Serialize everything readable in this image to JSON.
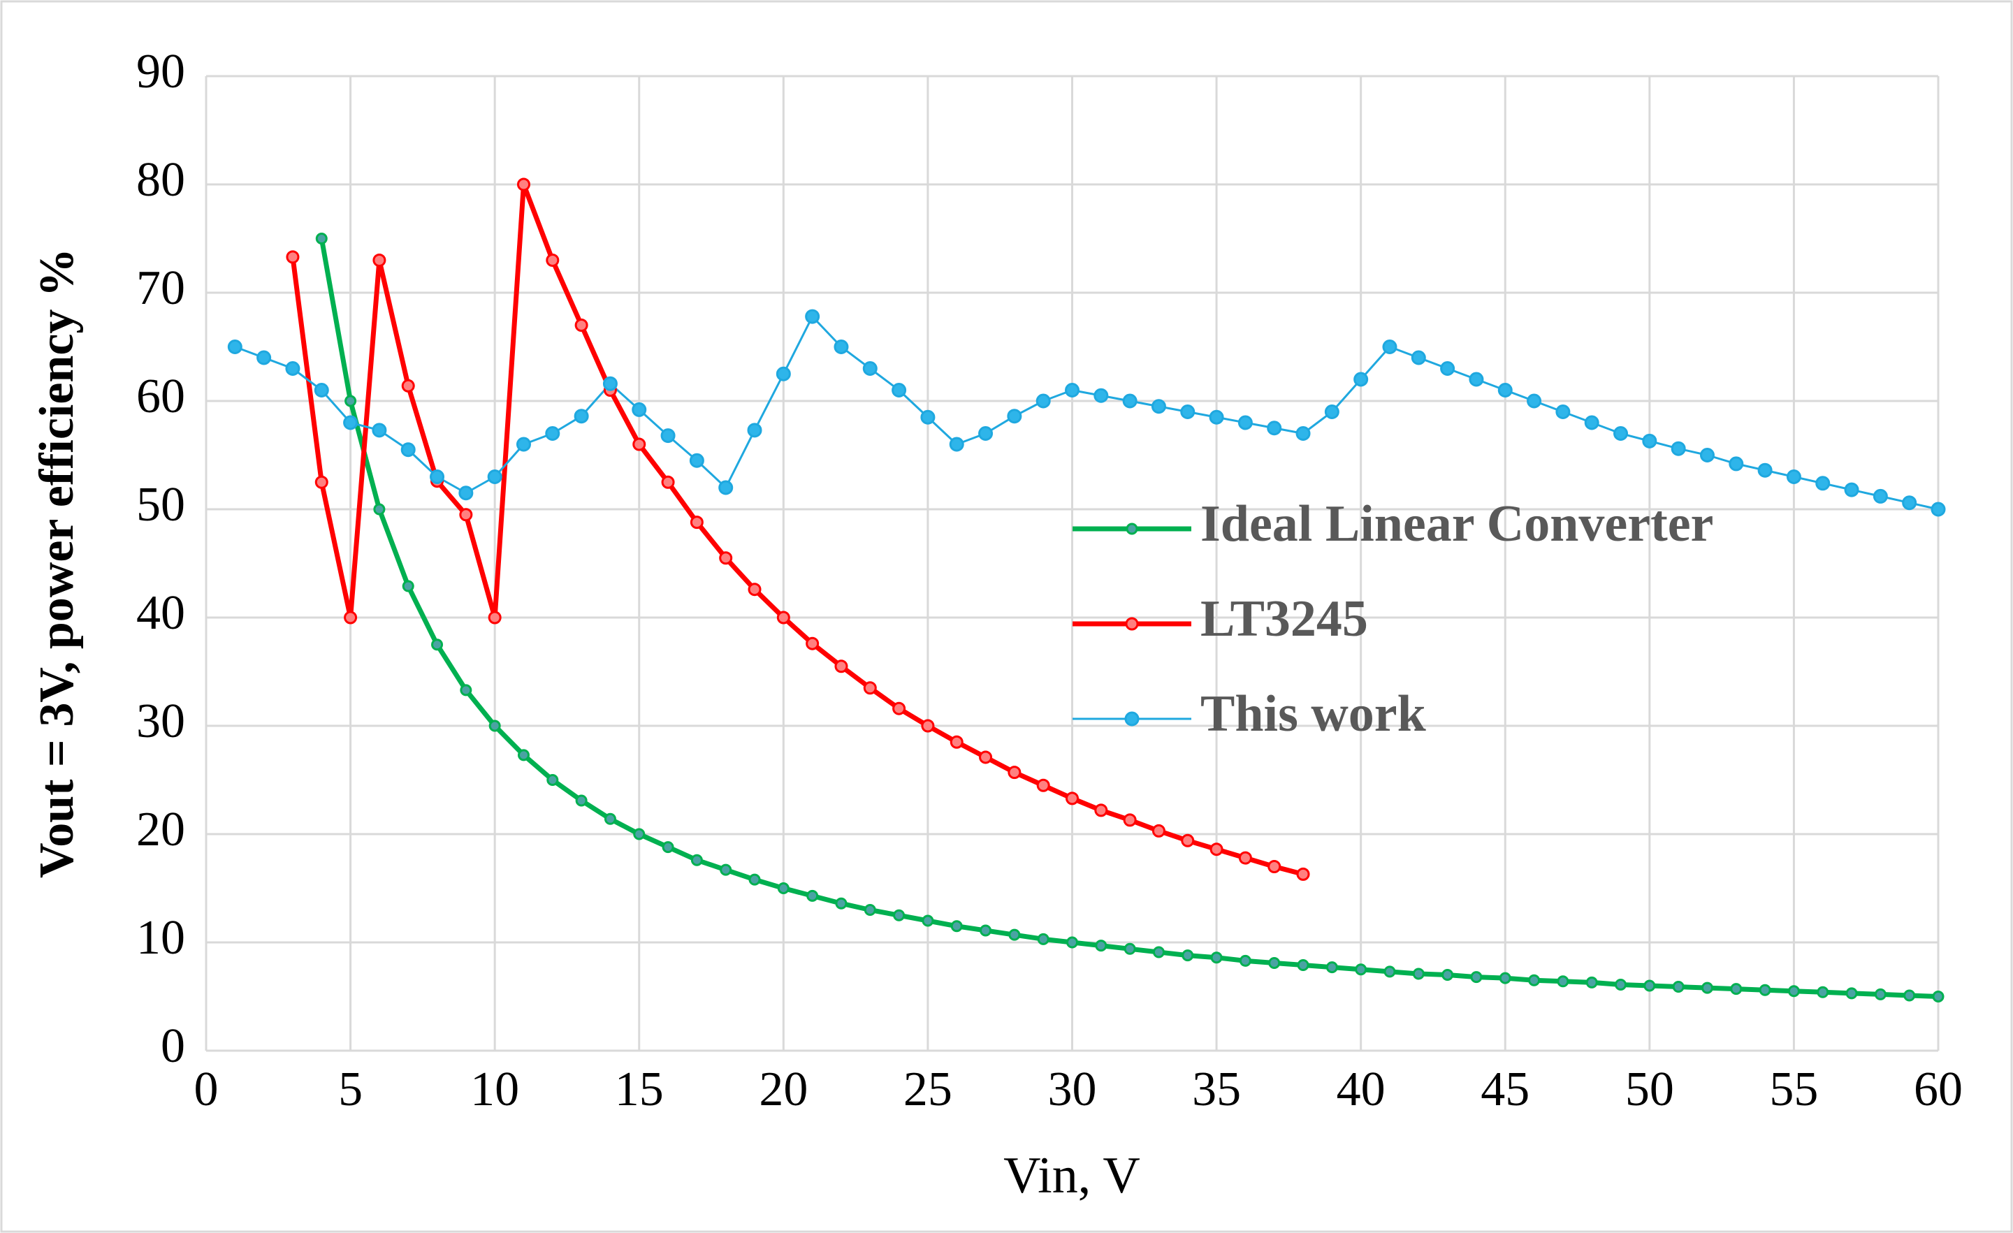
{
  "chart_data": {
    "type": "line",
    "x_label": "Vin, V",
    "y_label": "Vout = 3V, power efficiency %",
    "xlim": [
      0,
      60
    ],
    "xticks": [
      0,
      5,
      10,
      15,
      20,
      25,
      30,
      35,
      40,
      45,
      50,
      55,
      60
    ],
    "ylim": [
      0,
      90
    ],
    "yticks": [
      0,
      10,
      20,
      30,
      40,
      50,
      60,
      70,
      80,
      90
    ],
    "grid": true,
    "legend": "center-right",
    "series": [
      {
        "name": "Ideal Linear Converter",
        "color": "#00b050",
        "marker_color": "#4aa3a3",
        "x": [
          4,
          5,
          6,
          7,
          8,
          9,
          10,
          11,
          12,
          13,
          14,
          15,
          16,
          17,
          18,
          19,
          20,
          21,
          22,
          23,
          24,
          25,
          26,
          27,
          28,
          29,
          30,
          31,
          32,
          33,
          34,
          35,
          36,
          37,
          38,
          39,
          40,
          41,
          42,
          43,
          44,
          45,
          46,
          47,
          48,
          49,
          50,
          51,
          52,
          53,
          54,
          55,
          56,
          57,
          58,
          59,
          60
        ],
        "values": [
          75,
          60,
          50,
          42.9,
          37.5,
          33.3,
          30,
          27.3,
          25,
          23.1,
          21.4,
          20,
          18.8,
          17.6,
          16.7,
          15.8,
          15,
          14.3,
          13.6,
          13.0,
          12.5,
          12,
          11.5,
          11.1,
          10.7,
          10.3,
          10,
          9.7,
          9.4,
          9.1,
          8.8,
          8.6,
          8.3,
          8.1,
          7.9,
          7.7,
          7.5,
          7.3,
          7.1,
          7.0,
          6.8,
          6.7,
          6.5,
          6.4,
          6.3,
          6.1,
          6,
          5.9,
          5.8,
          5.7,
          5.6,
          5.5,
          5.4,
          5.3,
          5.2,
          5.1,
          5
        ]
      },
      {
        "name": "LT3245",
        "color": "#ff0000",
        "marker_color": "#ff8080",
        "x": [
          3,
          4,
          5,
          6,
          7,
          8,
          9,
          10,
          11,
          12,
          13,
          14,
          15,
          16,
          17,
          18,
          19,
          20,
          21,
          22,
          23,
          24,
          25,
          26,
          27,
          28,
          29,
          30,
          31,
          32,
          33,
          34,
          35,
          36,
          37,
          38
        ],
        "values": [
          73.3,
          52.5,
          40,
          73,
          61.4,
          52.6,
          49.5,
          40,
          80,
          73,
          67,
          61,
          56,
          52.5,
          48.8,
          45.5,
          42.6,
          40,
          37.6,
          35.5,
          33.5,
          31.6,
          30,
          28.5,
          27.1,
          25.7,
          24.5,
          23.3,
          22.2,
          21.3,
          20.3,
          19.4,
          18.6,
          17.8,
          17,
          16.3
        ]
      },
      {
        "name": "This work",
        "color": "#1fa8df",
        "marker_color": "#2eb5ea",
        "x": [
          1,
          2,
          3,
          4,
          5,
          6,
          7,
          8,
          9,
          10,
          11,
          12,
          13,
          14,
          15,
          16,
          17,
          18,
          19,
          20,
          21,
          22,
          23,
          24,
          25,
          26,
          27,
          28,
          29,
          30,
          31,
          32,
          33,
          34,
          35,
          36,
          37,
          38,
          39,
          40,
          41,
          42,
          43,
          44,
          45,
          46,
          47,
          48,
          49,
          50,
          51,
          52,
          53,
          54,
          55,
          56,
          57,
          58,
          59,
          60
        ],
        "values": [
          65,
          64,
          63,
          61,
          58,
          57.3,
          55.5,
          53,
          51.5,
          53,
          56,
          57,
          58.6,
          61.6,
          59.2,
          56.8,
          54.5,
          52,
          57.3,
          62.5,
          67.8,
          65,
          63,
          61,
          58.5,
          56,
          57,
          58.6,
          60,
          61,
          60.5,
          60,
          59.5,
          59,
          58.5,
          58,
          57.5,
          57,
          59,
          62,
          65,
          64,
          63,
          62,
          61,
          60,
          59,
          58,
          57,
          56.3,
          55.6,
          55,
          54.2,
          53.6,
          53,
          52.4,
          51.8,
          51.2,
          50.6,
          50
        ]
      }
    ]
  }
}
